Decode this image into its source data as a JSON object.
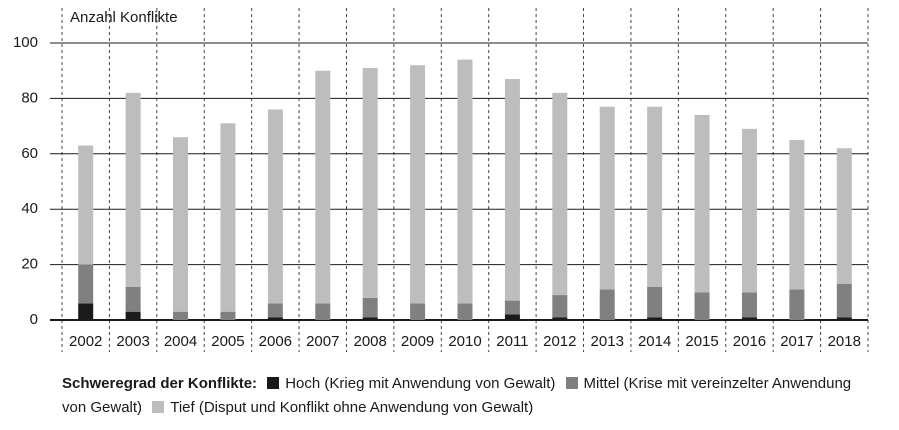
{
  "chart_data": {
    "type": "bar",
    "stacked": true,
    "y_label": "Anzahl Konflikte",
    "legend_title": "Schweregrad der Konflikte:",
    "categories": [
      "2002",
      "2003",
      "2004",
      "2005",
      "2006",
      "2007",
      "2008",
      "2009",
      "2010",
      "2011",
      "2012",
      "2013",
      "2014",
      "2015",
      "2016",
      "2017",
      "2018"
    ],
    "series": [
      {
        "name": "Hoch (Krieg mit Anwendung von Gewalt)",
        "color": "#1a1a1a",
        "values": [
          6,
          3,
          0,
          0,
          1,
          0,
          1,
          0,
          0,
          2,
          1,
          0,
          1,
          0,
          1,
          0,
          1
        ]
      },
      {
        "name": "Mittel (Krise mit vereinzelter Anwendung von Gewalt)",
        "color": "#808080",
        "values": [
          14,
          9,
          3,
          3,
          5,
          6,
          7,
          6,
          6,
          5,
          8,
          11,
          11,
          10,
          9,
          11,
          12
        ]
      },
      {
        "name": "Tief (Disput und Konflikt ohne Anwendung von Gewalt)",
        "color": "#bdbdbd",
        "values": [
          43,
          70,
          63,
          68,
          70,
          84,
          83,
          86,
          88,
          80,
          73,
          66,
          65,
          64,
          59,
          54,
          49
        ]
      }
    ],
    "ylim": [
      0,
      100
    ],
    "yticks": [
      0,
      20,
      40,
      60,
      80,
      100
    ],
    "grid": true
  }
}
